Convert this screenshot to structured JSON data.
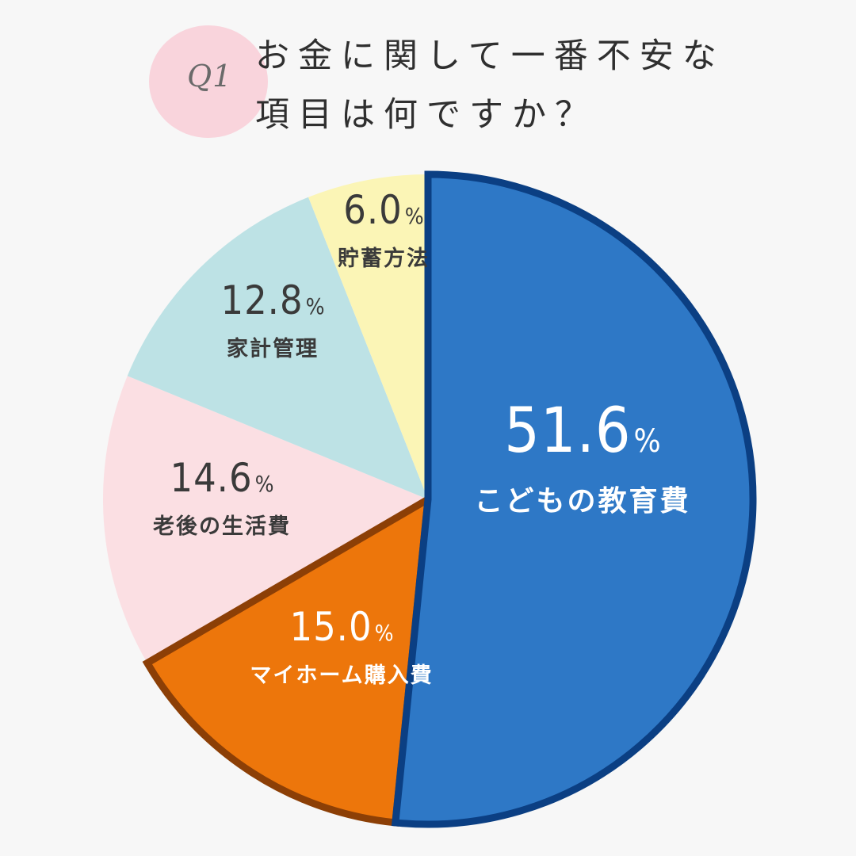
{
  "header": {
    "badge": "Q1",
    "title_line1": "お金に関して一番不安な",
    "title_line2": "項目は何ですか？"
  },
  "chart_data": {
    "type": "pie",
    "slices": [
      {
        "label": "こどもの教育費",
        "value": 51.6,
        "color": "#2e78c6",
        "stroke": "#0b3f83",
        "text_color": "#ffffff"
      },
      {
        "label": "マイホーム購入費",
        "value": 15.0,
        "color": "#ed760b",
        "stroke": "#8c3f06",
        "text_color": "#ffffff"
      },
      {
        "label": "老後の生活費",
        "value": 14.6,
        "color": "#fbdfe3",
        "stroke": null,
        "text_color": "#3a3a3a"
      },
      {
        "label": "家計管理",
        "value": 12.8,
        "color": "#bde2e5",
        "stroke": null,
        "text_color": "#3a3a3a"
      },
      {
        "label": "貯蓄方法",
        "value": 6.0,
        "color": "#fbf5b6",
        "stroke": null,
        "text_color": "#3a3a3a"
      }
    ],
    "value_suffix": "%",
    "start": "12 o'clock",
    "direction": "clockwise"
  }
}
